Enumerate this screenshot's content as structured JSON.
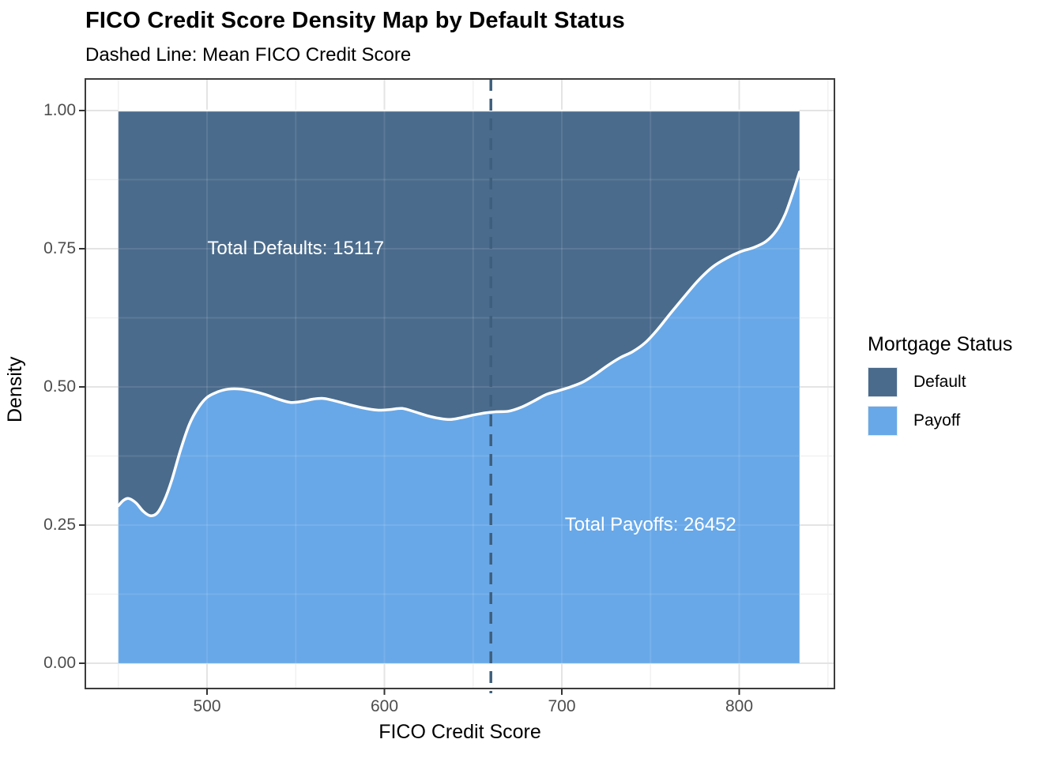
{
  "title": "FICO Credit Score Density Map by Default Status",
  "subtitle": "Dashed Line: Mean FICO Credit Score",
  "chart_data": {
    "type": "area",
    "variant": "filled-conditional-density",
    "title": "FICO Credit Score Density Map by Default Status",
    "subtitle": "Dashed Line: Mean FICO Credit Score",
    "xlabel": "FICO Credit Score",
    "ylabel": "Density",
    "xlim": [
      431,
      854
    ],
    "ylim": [
      -0.05,
      1.06
    ],
    "grid": true,
    "x_ticks": [
      500,
      600,
      700,
      800
    ],
    "x_tick_labels": [
      "500",
      "600",
      "700",
      "800"
    ],
    "x_minor_ticks": [
      450,
      550,
      650,
      750,
      850
    ],
    "y_ticks": [
      0,
      0.25,
      0.5,
      0.75,
      1.0
    ],
    "y_tick_labels": [
      "0.00",
      "0.25",
      "0.50",
      "0.75",
      "1.00"
    ],
    "y_minor_ticks": [
      0.125,
      0.375,
      0.625,
      0.875
    ],
    "data_x_range": [
      450,
      834
    ],
    "mean_fico": 660,
    "series": [
      {
        "name": "Default",
        "total": 15117,
        "region": "top",
        "fill": "#4A6B8C"
      },
      {
        "name": "Payoff",
        "total": 26452,
        "region": "bottom",
        "fill": "#68A8E8"
      }
    ],
    "boundary_payoff_share": [
      [
        450,
        0.285
      ],
      [
        453,
        0.295
      ],
      [
        456,
        0.298
      ],
      [
        460,
        0.29
      ],
      [
        464,
        0.275
      ],
      [
        468,
        0.267
      ],
      [
        472,
        0.272
      ],
      [
        476,
        0.295
      ],
      [
        480,
        0.33
      ],
      [
        485,
        0.385
      ],
      [
        490,
        0.432
      ],
      [
        495,
        0.462
      ],
      [
        500,
        0.481
      ],
      [
        506,
        0.491
      ],
      [
        512,
        0.496
      ],
      [
        519,
        0.496
      ],
      [
        526,
        0.492
      ],
      [
        533,
        0.486
      ],
      [
        540,
        0.478
      ],
      [
        547,
        0.472
      ],
      [
        554,
        0.474
      ],
      [
        560,
        0.478
      ],
      [
        566,
        0.479
      ],
      [
        573,
        0.474
      ],
      [
        580,
        0.468
      ],
      [
        588,
        0.462
      ],
      [
        596,
        0.458
      ],
      [
        603,
        0.459
      ],
      [
        610,
        0.461
      ],
      [
        617,
        0.455
      ],
      [
        624,
        0.448
      ],
      [
        631,
        0.443
      ],
      [
        637,
        0.441
      ],
      [
        643,
        0.444
      ],
      [
        650,
        0.449
      ],
      [
        657,
        0.453
      ],
      [
        663,
        0.455
      ],
      [
        670,
        0.456
      ],
      [
        677,
        0.463
      ],
      [
        684,
        0.474
      ],
      [
        691,
        0.486
      ],
      [
        698,
        0.493
      ],
      [
        705,
        0.5
      ],
      [
        712,
        0.509
      ],
      [
        719,
        0.523
      ],
      [
        726,
        0.539
      ],
      [
        733,
        0.553
      ],
      [
        740,
        0.564
      ],
      [
        747,
        0.58
      ],
      [
        754,
        0.604
      ],
      [
        761,
        0.632
      ],
      [
        769,
        0.663
      ],
      [
        777,
        0.693
      ],
      [
        785,
        0.717
      ],
      [
        793,
        0.733
      ],
      [
        801,
        0.745
      ],
      [
        808,
        0.752
      ],
      [
        815,
        0.763
      ],
      [
        821,
        0.783
      ],
      [
        826,
        0.813
      ],
      [
        830,
        0.849
      ],
      [
        833,
        0.879
      ],
      [
        834,
        0.889
      ]
    ],
    "annotations": [
      {
        "text": "Total Defaults: 15117",
        "x": 550,
        "y": 0.75,
        "color": "#FFFFFF"
      },
      {
        "text": "Total Payoffs: 26452",
        "x": 750,
        "y": 0.25,
        "color": "#FFFFFF"
      }
    ],
    "legend": {
      "title": "Mortgage Status",
      "position": "right",
      "entries": [
        {
          "label": "Default",
          "color": "#4A6B8C"
        },
        {
          "label": "Payoff",
          "color": "#68A8E8"
        }
      ]
    },
    "colors": {
      "default_fill": "#4A6B8C",
      "payoff_fill": "#68A8E8",
      "boundary_line": "#FFFFFF",
      "mean_line": "#3E5F7D",
      "grid_major": "#E4E4E4",
      "grid_minor": "#F1F1F1",
      "panel_border": "#3C3C3C",
      "tick_mark": "#333333",
      "tick_label": "#4D4D4D",
      "panel_background": "#FFFFFF"
    }
  }
}
